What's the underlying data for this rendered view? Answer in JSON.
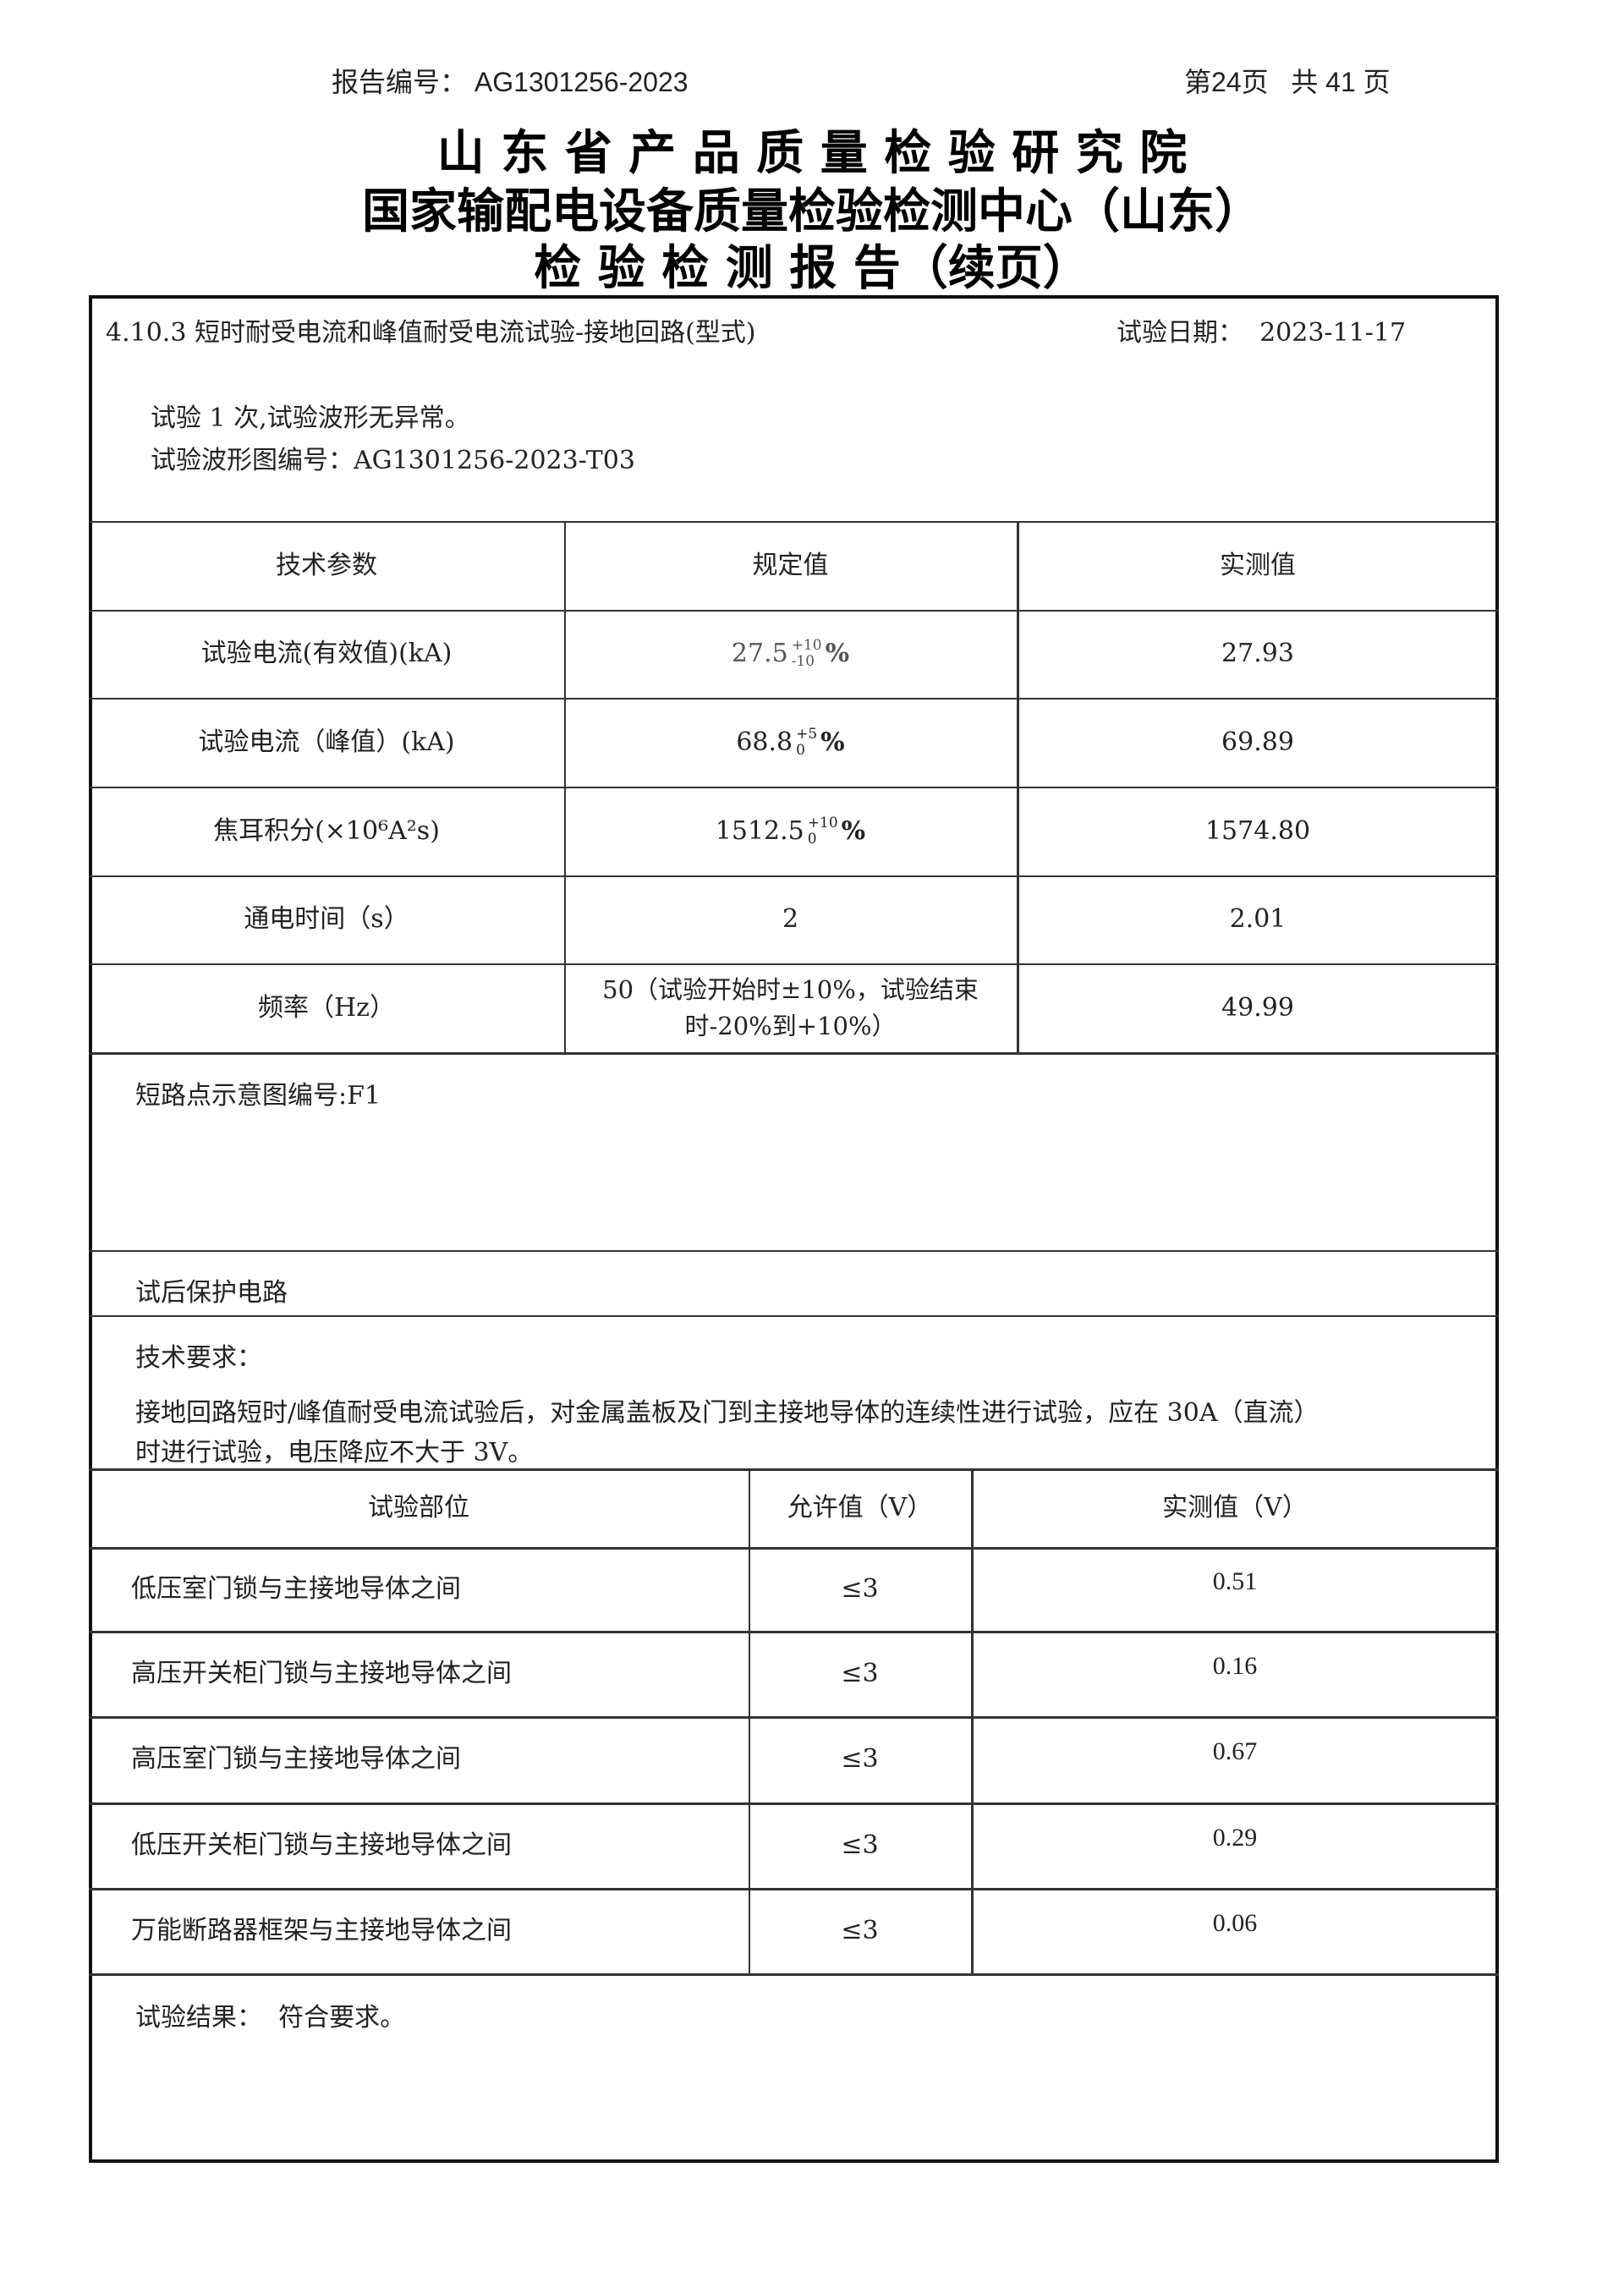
{
  "header": {
    "report_no_label": "报告编号：",
    "report_no": "AG1301256-2023",
    "page": "第24页",
    "total": "共 41 页"
  },
  "titles": [
    "山 东 省 产 品 质 量 检 验 研 究 院",
    "国家输配电设备质量检验检测中心（山东）",
    "检 验 检 测 报 告（续页）"
  ],
  "section": {
    "title": "4.10.3 短时耐受电流和峰值耐受电流试验-接地回路(型式)",
    "date_label": "试验日期：",
    "date": "2023-11-17",
    "lines": [
      "试验 1 次,试验波形无异常。",
      "试验波形图编号：AG1301256-2023-T03"
    ]
  },
  "table1": {
    "headers": [
      "技术参数",
      "规定值",
      "实测值"
    ],
    "rows": [
      {
        "param": "试验电流(有效值)(kA)",
        "base": "27.5",
        "upper": "+10",
        "lower": "-10",
        "unit": "%",
        "measured": "27.93"
      },
      {
        "param": "试验电流（峰值）(kA)",
        "base": "68.8",
        "upper": "+5",
        "lower": "0",
        "unit": "%",
        "measured": "69.89"
      },
      {
        "param": "焦耳积分(×10⁶A²s)",
        "base": "1512.5",
        "upper": "+10",
        "lower": "0",
        "unit": "%",
        "measured": "1574.80"
      },
      {
        "param": "通电时间（s）",
        "spec": "2",
        "measured": "2.01"
      },
      {
        "param": "频率（Hz）",
        "spec": "50（试验开始时±10%，试验结束时-20%到+10%）",
        "measured": "49.99"
      }
    ]
  },
  "diagram_no": "短路点示意图编号:F1",
  "protection": "试后保护电路",
  "requirement": {
    "label": "技术要求：",
    "lines": [
      "接地回路短时/峰值耐受电流试验后，对金属盖板及门到主接地导体的连续性进行试验，应在 30A（直流）",
      "时进行试验，电压降应不大于 3V。"
    ]
  },
  "table2": {
    "headers": [
      "试验部位",
      "允许值（V）",
      "实测值（V）"
    ],
    "rows": [
      [
        "低压室门锁与主接地导体之间",
        "≤3",
        "0.51"
      ],
      [
        "高压开关柜门锁与主接地导体之间",
        "≤3",
        "0.16"
      ],
      [
        "高压室门锁与主接地导体之间",
        "≤3",
        "0.67"
      ],
      [
        "低压开关柜门锁与主接地导体之间",
        "≤3",
        "0.29"
      ],
      [
        "万能断路器框架与主接地导体之间",
        "≤3",
        "0.06"
      ]
    ]
  },
  "result": {
    "label": "试验结果：",
    "value": "符合要求。"
  }
}
